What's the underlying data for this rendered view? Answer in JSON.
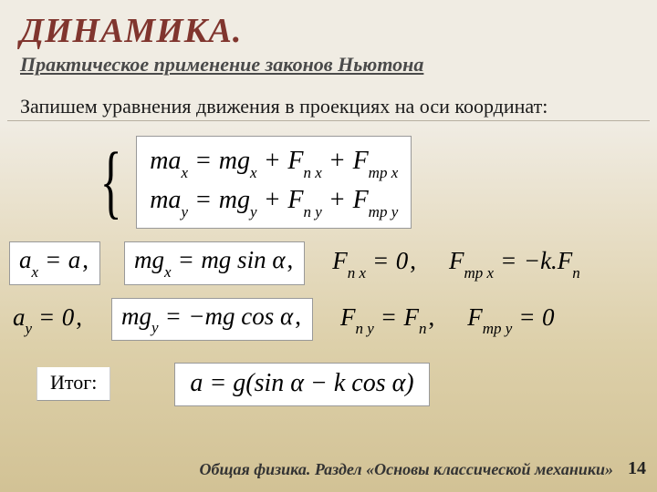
{
  "title": "ДИНАМИКА.",
  "subtitle": "Практическое применение законов Ньютона",
  "intro": "Запишем уравнения движения в проекциях на оси координат:",
  "system": {
    "line1_lhs": "ma",
    "line1_lhs_sub": "x",
    "line1_t1": "mg",
    "line1_t1_sub": "x",
    "line1_t2": "F",
    "line1_t2_sub": "n x",
    "line1_t3": "F",
    "line1_t3_sub": "тр x",
    "line2_lhs": "ma",
    "line2_lhs_sub": "y",
    "line2_t1": "mg",
    "line2_t1_sub": "y",
    "line2_t2": "F",
    "line2_t2_sub": "n y",
    "line2_t3": "F",
    "line2_t3_sub": "тр y"
  },
  "row1": {
    "c1_v": "a",
    "c1_s": "x",
    "c1_r": "a",
    "c2_v": "mg",
    "c2_s": "x",
    "c2_r": "mg sin α",
    "c3_v": "F",
    "c3_s": "n x",
    "c3_r": "0",
    "c4_v": "F",
    "c4_s": "тр x",
    "c4_r": "−k.F",
    "c4_rs": "n"
  },
  "row2": {
    "c1_v": "a",
    "c1_s": "y",
    "c1_r": "0",
    "c2_v": "mg",
    "c2_s": "y",
    "c2_r": "−mg cos α",
    "c3_v": "F",
    "c3_s": "n y",
    "c3_r": "F",
    "c3_rs": "n",
    "c4_v": "F",
    "c4_s": "тр y",
    "c4_r": "0"
  },
  "itog": {
    "label": "Итог:",
    "eq": "a = g(sin α − k cos α)"
  },
  "footer": "Общая физика. Раздел «Основы классической механики»",
  "page": "14",
  "colors": {
    "title_color": "#80352e",
    "bg_top": "#f0ece3",
    "bg_bottom": "#d2c295",
    "white": "#ffffff"
  }
}
